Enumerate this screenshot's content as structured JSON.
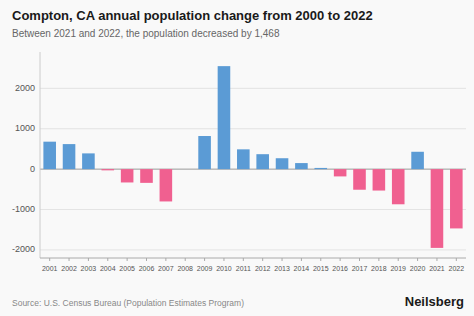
{
  "chart_data": {
    "type": "bar",
    "title": "Compton, CA annual population change from 2000 to 2022",
    "subtitle": "Between 2021 and 2022, the population decreased by 1,468",
    "annotations": [
      "Source: U.S. Census Bureau (Population Estimates Program)",
      "Neilsberg"
    ],
    "categories": [
      "2001",
      "2002",
      "2003",
      "2004",
      "2005",
      "2006",
      "2007",
      "2008",
      "2009",
      "2010",
      "2011",
      "2012",
      "2013",
      "2014",
      "2015",
      "2016",
      "2017",
      "2018",
      "2019",
      "2020",
      "2021",
      "2022"
    ],
    "values": [
      680,
      620,
      390,
      -30,
      -330,
      -340,
      -800,
      0,
      820,
      2550,
      490,
      370,
      270,
      150,
      30,
      -180,
      -510,
      -530,
      -870,
      430,
      -1950,
      -1468
    ],
    "colors": [
      "#5b9bd5",
      "#5b9bd5",
      "#5b9bd5",
      "#f06090",
      "#f06090",
      "#f06090",
      "#f06090",
      "#5b9bd5",
      "#5b9bd5",
      "#5b9bd5",
      "#5b9bd5",
      "#5b9bd5",
      "#5b9bd5",
      "#5b9bd5",
      "#5b9bd5",
      "#f06090",
      "#f06090",
      "#f06090",
      "#f06090",
      "#5b9bd5",
      "#f06090",
      "#f06090"
    ],
    "ylim": [
      -2200,
      2900
    ],
    "yticks": [
      -2000,
      -1000,
      0,
      1000,
      2000
    ],
    "grid": true
  }
}
